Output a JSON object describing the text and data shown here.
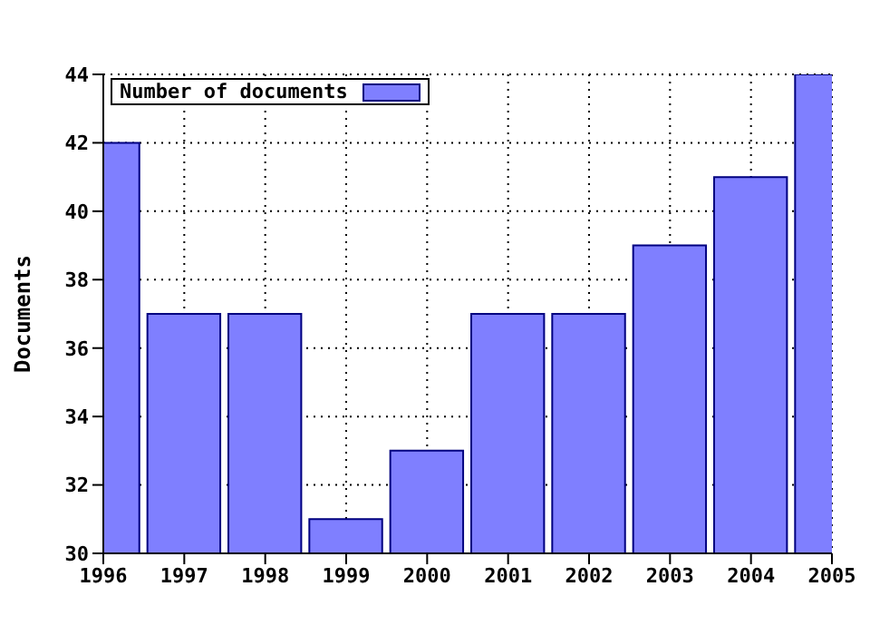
{
  "chart_data": {
    "type": "bar",
    "ylabel": "Documents",
    "x": [
      1996,
      1997,
      1998,
      1999,
      2000,
      2001,
      2002,
      2003,
      2004,
      2005
    ],
    "series": [
      {
        "name": "Number of documents",
        "color": "#7f7fff",
        "values": [
          42,
          37,
          37,
          31,
          33,
          37,
          37,
          39,
          41,
          44
        ]
      }
    ],
    "xlim": [
      1996,
      2005
    ],
    "xticks": [
      1996,
      1997,
      1998,
      1999,
      2000,
      2001,
      2002,
      2003,
      2004,
      2005
    ],
    "ylim": [
      30,
      44
    ],
    "yticks": [
      30,
      32,
      34,
      36,
      38,
      40,
      42,
      44
    ],
    "grid": true,
    "legend": "top left"
  }
}
